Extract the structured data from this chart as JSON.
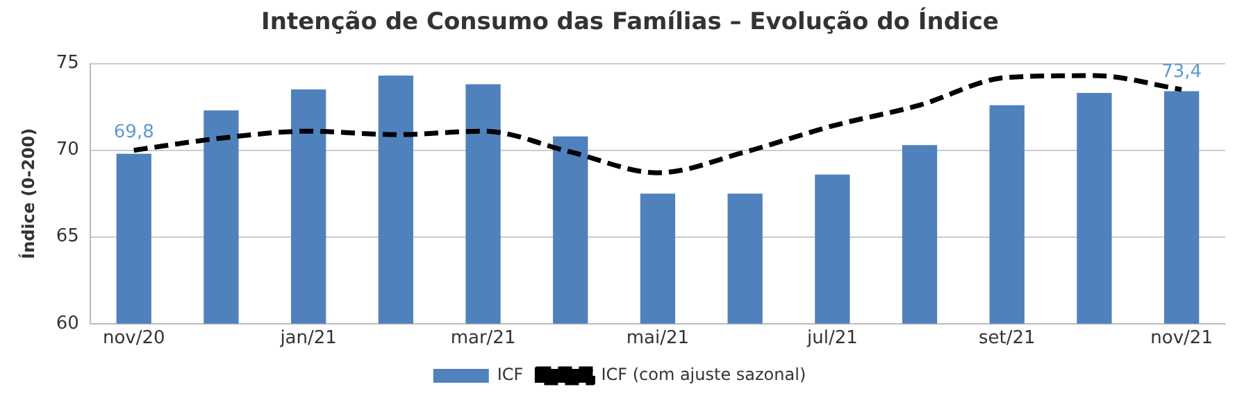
{
  "chart_data": {
    "type": "bar",
    "title": "Intenção de Consumo das Famílias – Evolução do Índice",
    "ylabel": "Índice (0-200)",
    "categories": [
      "nov/20",
      null,
      "jan/21",
      null,
      "mar/21",
      null,
      "mai/21",
      null,
      "jul/21",
      null,
      "set/21",
      null,
      "nov/21"
    ],
    "series": [
      {
        "name": "ICF",
        "type": "bar",
        "color": "#4f81bd",
        "values": [
          69.8,
          72.3,
          73.5,
          74.3,
          73.8,
          70.8,
          67.5,
          67.5,
          68.6,
          70.3,
          72.6,
          73.3,
          73.4
        ],
        "value_labels": [
          "69,8",
          null,
          null,
          null,
          null,
          null,
          null,
          null,
          null,
          null,
          null,
          null,
          "73,4"
        ]
      },
      {
        "name": "ICF (com ajuste sazonal)",
        "type": "line",
        "color": "#000000",
        "line_style": "dashed",
        "marker": "none",
        "values": [
          70.0,
          70.7,
          71.1,
          70.9,
          71.1,
          69.9,
          68.7,
          69.9,
          71.4,
          72.6,
          74.2,
          74.3,
          73.5
        ]
      }
    ],
    "ylim": [
      60,
      75
    ],
    "yticks": [
      60,
      65,
      70,
      75
    ],
    "grid": "y",
    "legend": "bottom"
  }
}
